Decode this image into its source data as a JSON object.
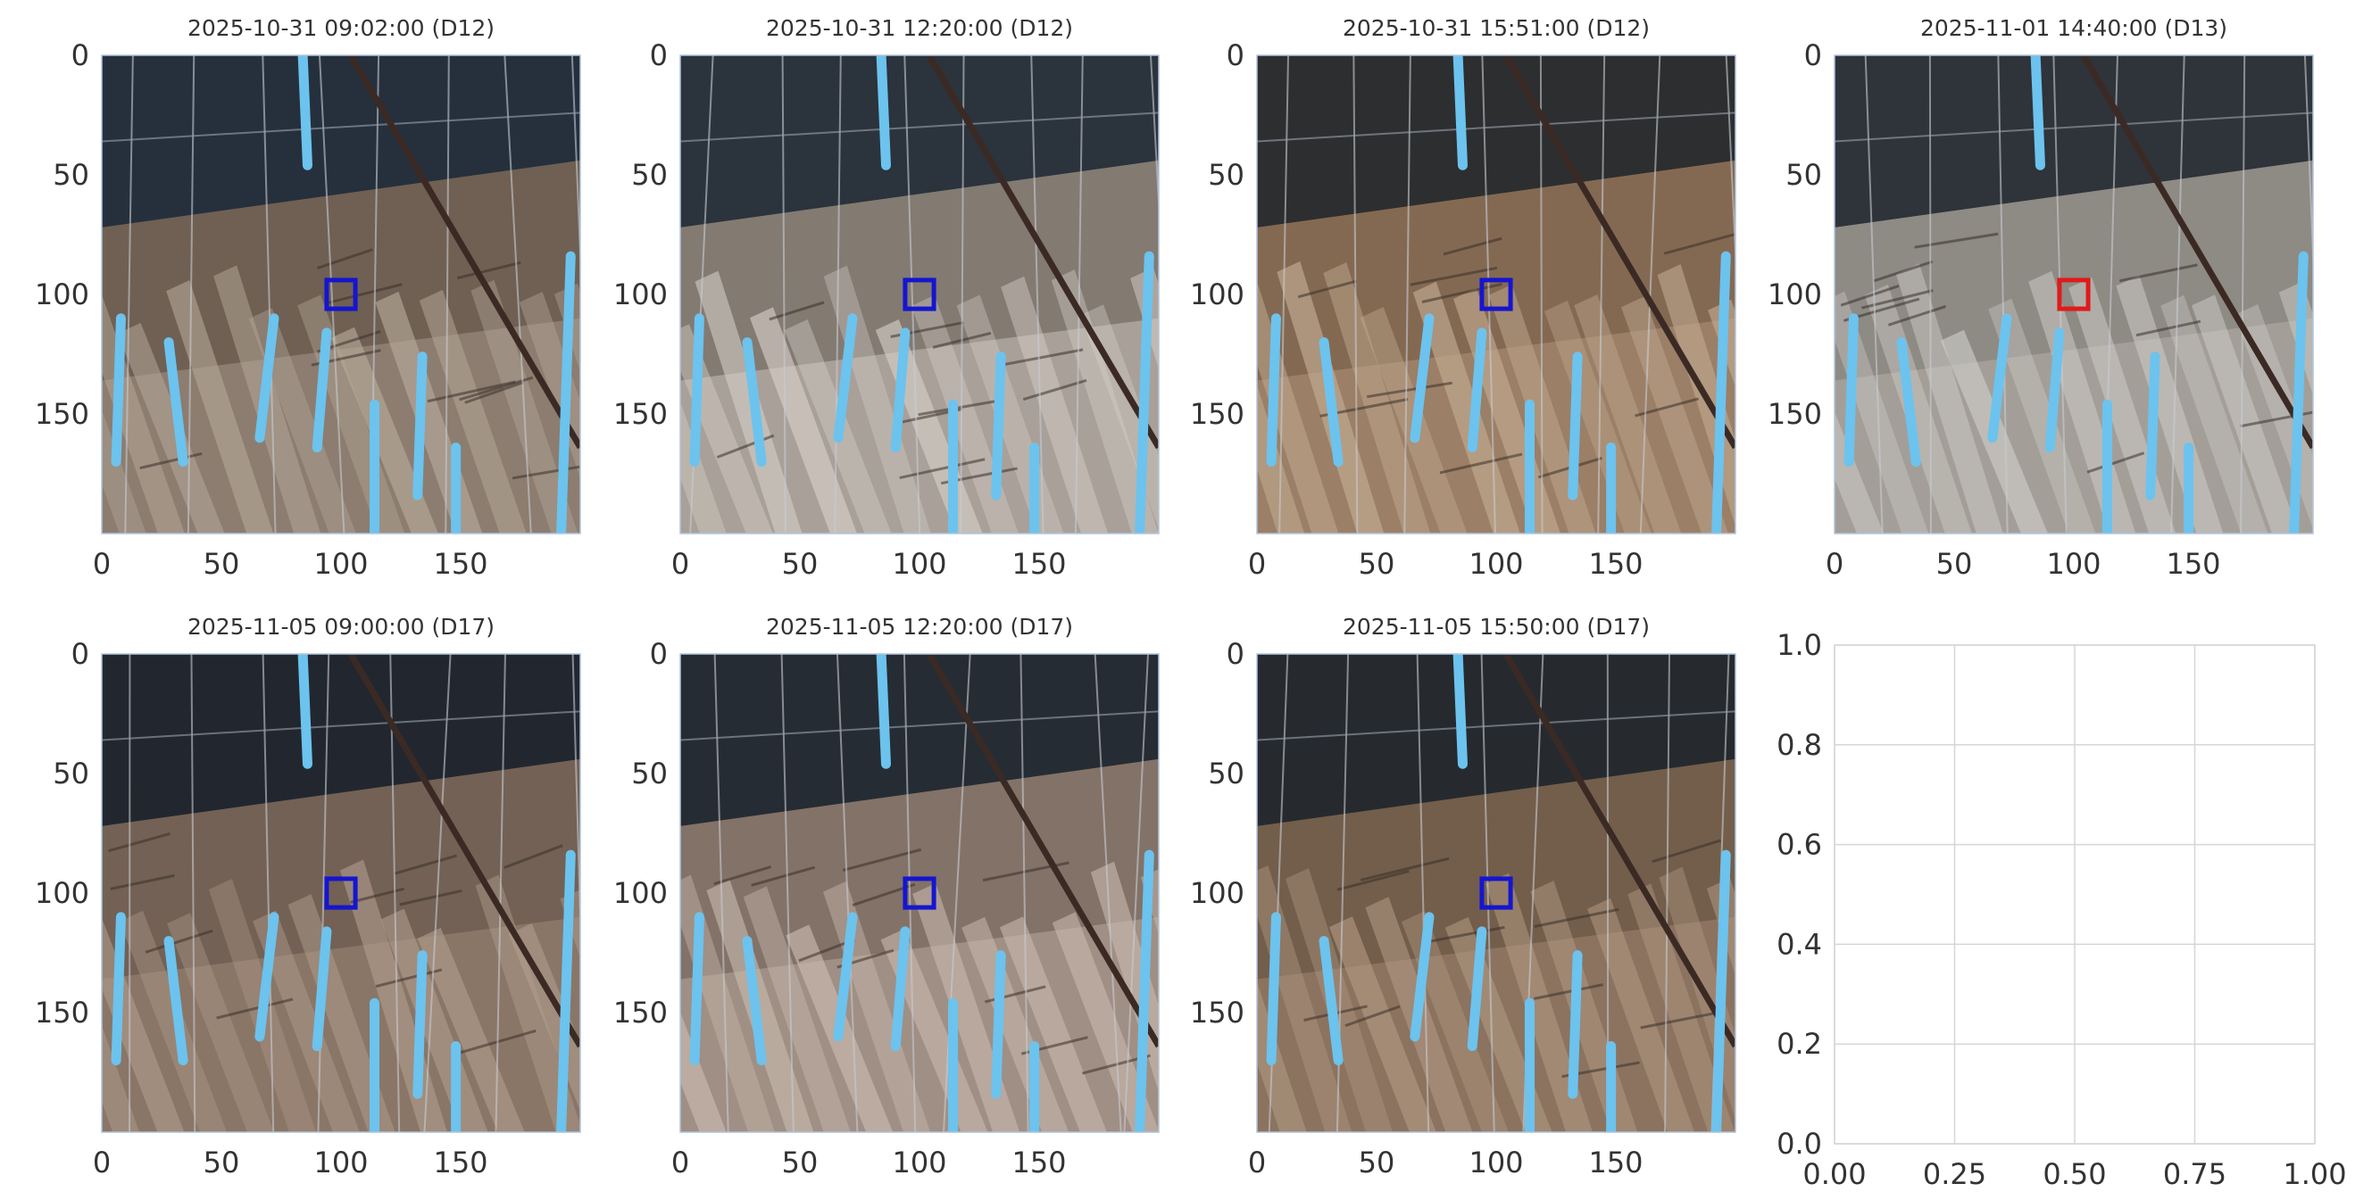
{
  "figure": {
    "rows": 2,
    "cols": 4,
    "background": "#ffffff",
    "grid_color": "#d6d6d6",
    "axis_color": "#b0c4de",
    "image_axes": {
      "ylim": [
        0,
        200
      ],
      "xlim": [
        0,
        200
      ],
      "y_inverted": true,
      "yticks": [
        "0",
        "50",
        "100",
        "150"
      ],
      "xticks": [
        "0",
        "50",
        "100",
        "150"
      ],
      "ytick_values": [
        0,
        50,
        100,
        150
      ],
      "xtick_values": [
        0,
        50,
        100,
        150
      ]
    },
    "empty_axes": {
      "xlim": [
        0,
        1
      ],
      "ylim": [
        0,
        1
      ],
      "xticks": [
        "0.00",
        "0.25",
        "0.50",
        "0.75",
        "1.00"
      ],
      "yticks": [
        "0.0",
        "0.2",
        "0.4",
        "0.6",
        "0.8",
        "1.0"
      ],
      "grid": true
    }
  },
  "chart_data": [
    {
      "type": "image",
      "title": "2025-10-31 09:02:00 (D12)",
      "marker": {
        "center": [
          100,
          100
        ],
        "half_size": 6,
        "color": "#1515d0"
      },
      "palette": {
        "sky": "#26303c",
        "mid": "#6a5a4e",
        "low": "#8c7d70",
        "light": "#b7aa9a"
      }
    },
    {
      "type": "image",
      "title": "2025-10-31 12:20:00 (D12)",
      "marker": {
        "center": [
          100,
          100
        ],
        "half_size": 6,
        "color": "#1515d0"
      },
      "palette": {
        "sky": "#2b333c",
        "mid": "#7d736b",
        "low": "#a9a099",
        "light": "#d8d2ca"
      }
    },
    {
      "type": "image",
      "title": "2025-10-31 15:51:00 (D12)",
      "marker": {
        "center": [
          100,
          100
        ],
        "half_size": 6,
        "color": "#1515d0"
      },
      "palette": {
        "sky": "#2d2e30",
        "mid": "#80654f",
        "low": "#9b7f66",
        "light": "#c4ad94"
      }
    },
    {
      "type": "image",
      "title": "2025-11-01 14:40:00 (D13)",
      "marker": {
        "center": [
          100,
          100
        ],
        "half_size": 6,
        "color": "#e01a1a"
      },
      "palette": {
        "sky": "#2f333a",
        "mid": "#8b8680",
        "low": "#a39f98",
        "light": "#d2d0cc"
      }
    },
    {
      "type": "image",
      "title": "2025-11-05 09:00:00 (D17)",
      "marker": {
        "center": [
          100,
          100
        ],
        "half_size": 6,
        "color": "#1515d0"
      },
      "palette": {
        "sky": "#22272f",
        "mid": "#6e5e52",
        "low": "#8a7667",
        "light": "#b29f8f"
      }
    },
    {
      "type": "image",
      "title": "2025-11-05 12:20:00 (D17)",
      "marker": {
        "center": [
          100,
          100
        ],
        "half_size": 6,
        "color": "#1515d0"
      },
      "palette": {
        "sky": "#262c33",
        "mid": "#7e6d63",
        "low": "#a08f84",
        "light": "#cbbcb1"
      }
    },
    {
      "type": "image",
      "title": "2025-11-05 15:50:00 (D17)",
      "marker": {
        "center": [
          100,
          100
        ],
        "half_size": 6,
        "color": "#1515d0"
      },
      "palette": {
        "sky": "#262a2e",
        "mid": "#6f5a48",
        "low": "#8b7360",
        "light": "#b59c85"
      }
    }
  ]
}
